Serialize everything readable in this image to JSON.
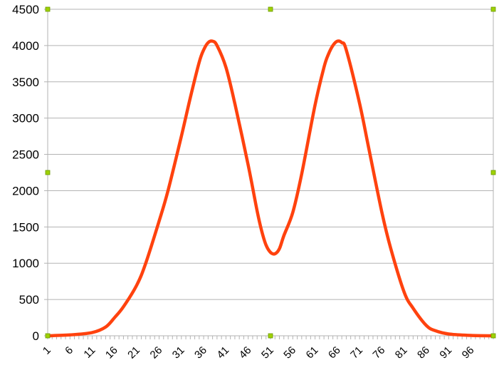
{
  "chart_data": {
    "type": "line",
    "title": "",
    "xlabel": "",
    "ylabel": "",
    "ylim": [
      0,
      4500
    ],
    "yticks": [
      0,
      500,
      1000,
      1500,
      2000,
      2500,
      3000,
      3500,
      4000,
      4500
    ],
    "ytick_labels": [
      "0",
      "500",
      "1000",
      "1500",
      "2000",
      "2500",
      "3000",
      "3500",
      "4000",
      "4500"
    ],
    "xlim": [
      1,
      101
    ],
    "xtick_labels": [
      "1",
      "6",
      "11",
      "16",
      "21",
      "26",
      "31",
      "36",
      "41",
      "46",
      "51",
      "56",
      "61",
      "66",
      "71",
      "76",
      "81",
      "86",
      "91",
      "96"
    ],
    "grid": true,
    "legend": "none",
    "series": [
      {
        "color": "#ff420e",
        "x": [
          1,
          6,
          11,
          14,
          16,
          18,
          21,
          23,
          26,
          28,
          31,
          33,
          35,
          36,
          37,
          38,
          39,
          41,
          43,
          46,
          48,
          49,
          50,
          51,
          52,
          53,
          54,
          56,
          58,
          61,
          63,
          64,
          65,
          66,
          67,
          68,
          71,
          73,
          76,
          78,
          81,
          83,
          86,
          88,
          91,
          96,
          101
        ],
        "y": [
          0,
          12,
          45,
          120,
          250,
          400,
          700,
          1000,
          1580,
          2000,
          2750,
          3280,
          3770,
          3940,
          4040,
          4060,
          4000,
          3700,
          3200,
          2350,
          1720,
          1450,
          1250,
          1150,
          1130,
          1200,
          1380,
          1700,
          2230,
          3180,
          3700,
          3880,
          4000,
          4060,
          4040,
          3940,
          3200,
          2600,
          1700,
          1200,
          600,
          380,
          140,
          70,
          25,
          5,
          0
        ]
      }
    ]
  },
  "handles_color": "#9fd100"
}
